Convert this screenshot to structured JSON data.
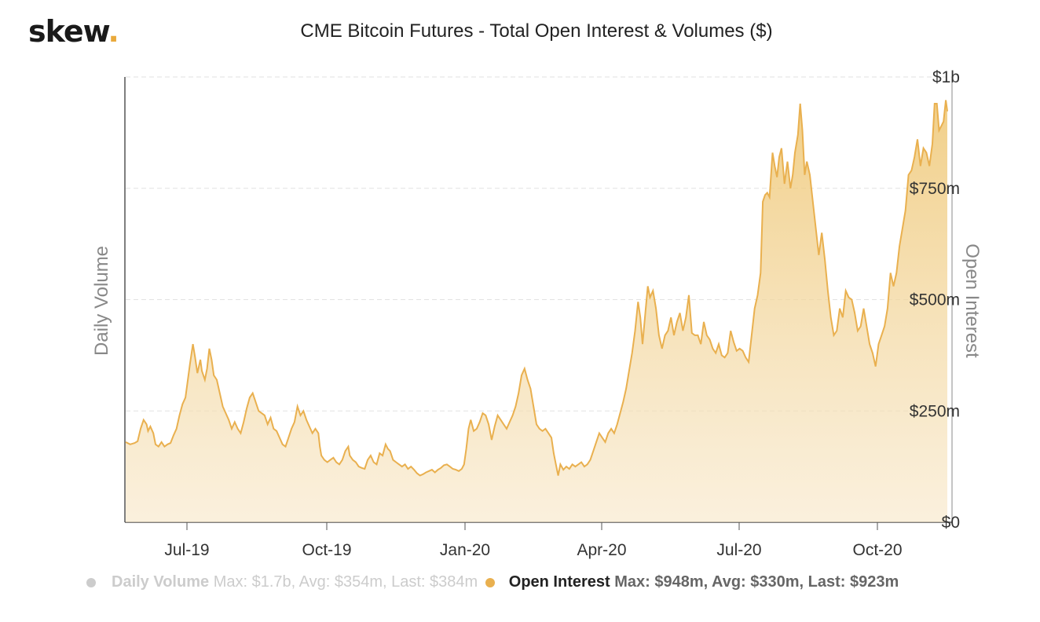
{
  "logo": {
    "text": "skew",
    "dot": "."
  },
  "chart_data": {
    "type": "area",
    "title": "CME Bitcoin Futures - Total Open Interest & Volumes ($)",
    "ylabel_left": "Daily Volume",
    "ylabel_right": "Open Interest",
    "x_ticks": [
      "Jul-19",
      "Oct-19",
      "Jan-20",
      "Apr-20",
      "Jul-20",
      "Oct-20"
    ],
    "y_ticks": [
      "$0",
      "$250m",
      "$500m",
      "$750m",
      "$1b"
    ],
    "ylim": [
      0,
      1000
    ],
    "y_unit": "$m",
    "grid": true,
    "color": "#e9b04f",
    "series": [
      {
        "name": "Open Interest",
        "values": [
          [
            0.0,
            180
          ],
          [
            0.3,
            175
          ],
          [
            0.6,
            178
          ],
          [
            0.8,
            182
          ],
          [
            1.0,
            210
          ],
          [
            1.2,
            230
          ],
          [
            1.4,
            220
          ],
          [
            1.5,
            205
          ],
          [
            1.65,
            215
          ],
          [
            1.85,
            200
          ],
          [
            2.0,
            175
          ],
          [
            2.2,
            170
          ],
          [
            2.4,
            180
          ],
          [
            2.6,
            170
          ],
          [
            2.8,
            175
          ],
          [
            3.0,
            178
          ],
          [
            3.2,
            195
          ],
          [
            3.4,
            210
          ],
          [
            3.6,
            240
          ],
          [
            3.8,
            265
          ],
          [
            4.0,
            280
          ],
          [
            4.1,
            305
          ],
          [
            4.3,
            355
          ],
          [
            4.5,
            400
          ],
          [
            4.65,
            370
          ],
          [
            4.8,
            335
          ],
          [
            5.0,
            365
          ],
          [
            5.1,
            340
          ],
          [
            5.3,
            320
          ],
          [
            5.45,
            345
          ],
          [
            5.6,
            390
          ],
          [
            5.75,
            365
          ],
          [
            5.9,
            330
          ],
          [
            6.1,
            320
          ],
          [
            6.3,
            290
          ],
          [
            6.5,
            260
          ],
          [
            6.7,
            245
          ],
          [
            6.9,
            230
          ],
          [
            7.1,
            210
          ],
          [
            7.3,
            225
          ],
          [
            7.5,
            210
          ],
          [
            7.7,
            200
          ],
          [
            7.9,
            225
          ],
          [
            8.1,
            255
          ],
          [
            8.3,
            280
          ],
          [
            8.5,
            290
          ],
          [
            8.7,
            270
          ],
          [
            8.9,
            250
          ],
          [
            9.1,
            245
          ],
          [
            9.3,
            240
          ],
          [
            9.5,
            220
          ],
          [
            9.7,
            235
          ],
          [
            9.9,
            210
          ],
          [
            10.1,
            205
          ],
          [
            10.3,
            190
          ],
          [
            10.5,
            175
          ],
          [
            10.7,
            170
          ],
          [
            10.9,
            190
          ],
          [
            11.1,
            210
          ],
          [
            11.3,
            225
          ],
          [
            11.5,
            260
          ],
          [
            11.7,
            240
          ],
          [
            11.9,
            250
          ],
          [
            12.1,
            230
          ],
          [
            12.3,
            215
          ],
          [
            12.5,
            200
          ],
          [
            12.7,
            210
          ],
          [
            12.9,
            200
          ],
          [
            13.0,
            170
          ],
          [
            13.1,
            150
          ],
          [
            13.3,
            140
          ],
          [
            13.5,
            135
          ],
          [
            13.7,
            140
          ],
          [
            13.9,
            145
          ],
          [
            14.1,
            135
          ],
          [
            14.3,
            130
          ],
          [
            14.5,
            140
          ],
          [
            14.7,
            160
          ],
          [
            14.9,
            170
          ],
          [
            15.0,
            150
          ],
          [
            15.2,
            140
          ],
          [
            15.4,
            135
          ],
          [
            15.6,
            125
          ],
          [
            15.8,
            122
          ],
          [
            16.0,
            120
          ],
          [
            16.2,
            140
          ],
          [
            16.4,
            150
          ],
          [
            16.6,
            135
          ],
          [
            16.8,
            130
          ],
          [
            17.0,
            155
          ],
          [
            17.2,
            150
          ],
          [
            17.4,
            175
          ],
          [
            17.55,
            165
          ],
          [
            17.7,
            160
          ],
          [
            17.9,
            140
          ],
          [
            18.1,
            135
          ],
          [
            18.3,
            130
          ],
          [
            18.5,
            125
          ],
          [
            18.7,
            130
          ],
          [
            18.9,
            120
          ],
          [
            19.1,
            125
          ],
          [
            19.3,
            118
          ],
          [
            19.5,
            110
          ],
          [
            19.7,
            105
          ],
          [
            19.9,
            108
          ],
          [
            20.1,
            112
          ],
          [
            20.3,
            115
          ],
          [
            20.5,
            118
          ],
          [
            20.7,
            112
          ],
          [
            20.9,
            118
          ],
          [
            21.1,
            122
          ],
          [
            21.3,
            128
          ],
          [
            21.5,
            130
          ],
          [
            21.7,
            125
          ],
          [
            21.9,
            120
          ],
          [
            22.1,
            118
          ],
          [
            22.3,
            115
          ],
          [
            22.5,
            120
          ],
          [
            22.65,
            130
          ],
          [
            22.8,
            165
          ],
          [
            22.95,
            210
          ],
          [
            23.1,
            230
          ],
          [
            23.3,
            205
          ],
          [
            23.5,
            210
          ],
          [
            23.7,
            225
          ],
          [
            23.9,
            245
          ],
          [
            24.1,
            240
          ],
          [
            24.3,
            220
          ],
          [
            24.5,
            185
          ],
          [
            24.7,
            215
          ],
          [
            24.9,
            240
          ],
          [
            25.1,
            230
          ],
          [
            25.3,
            220
          ],
          [
            25.5,
            210
          ],
          [
            25.7,
            225
          ],
          [
            25.9,
            240
          ],
          [
            26.1,
            260
          ],
          [
            26.3,
            290
          ],
          [
            26.5,
            330
          ],
          [
            26.7,
            345
          ],
          [
            26.9,
            320
          ],
          [
            27.1,
            300
          ],
          [
            27.3,
            260
          ],
          [
            27.5,
            220
          ],
          [
            27.7,
            210
          ],
          [
            27.9,
            205
          ],
          [
            28.1,
            210
          ],
          [
            28.3,
            200
          ],
          [
            28.5,
            190
          ],
          [
            28.65,
            155
          ],
          [
            28.8,
            130
          ],
          [
            28.95,
            105
          ],
          [
            29.1,
            130
          ],
          [
            29.3,
            118
          ],
          [
            29.5,
            125
          ],
          [
            29.7,
            120
          ],
          [
            29.9,
            130
          ],
          [
            30.1,
            125
          ],
          [
            30.3,
            130
          ],
          [
            30.5,
            135
          ],
          [
            30.7,
            125
          ],
          [
            30.9,
            130
          ],
          [
            31.1,
            140
          ],
          [
            31.3,
            160
          ],
          [
            31.5,
            180
          ],
          [
            31.7,
            200
          ],
          [
            31.9,
            190
          ],
          [
            32.1,
            180
          ],
          [
            32.3,
            200
          ],
          [
            32.5,
            210
          ],
          [
            32.7,
            200
          ],
          [
            32.9,
            220
          ],
          [
            33.1,
            245
          ],
          [
            33.3,
            270
          ],
          [
            33.5,
            300
          ],
          [
            33.7,
            340
          ],
          [
            33.9,
            380
          ],
          [
            34.1,
            430
          ],
          [
            34.3,
            495
          ],
          [
            34.45,
            460
          ],
          [
            34.6,
            400
          ],
          [
            34.8,
            475
          ],
          [
            34.95,
            530
          ],
          [
            35.1,
            505
          ],
          [
            35.3,
            520
          ],
          [
            35.5,
            480
          ],
          [
            35.7,
            420
          ],
          [
            35.9,
            390
          ],
          [
            36.1,
            420
          ],
          [
            36.3,
            430
          ],
          [
            36.5,
            460
          ],
          [
            36.7,
            420
          ],
          [
            36.9,
            450
          ],
          [
            37.1,
            470
          ],
          [
            37.3,
            430
          ],
          [
            37.5,
            460
          ],
          [
            37.7,
            510
          ],
          [
            37.9,
            425
          ],
          [
            38.1,
            420
          ],
          [
            38.3,
            420
          ],
          [
            38.5,
            400
          ],
          [
            38.7,
            450
          ],
          [
            38.9,
            420
          ],
          [
            39.1,
            410
          ],
          [
            39.3,
            390
          ],
          [
            39.5,
            380
          ],
          [
            39.7,
            400
          ],
          [
            39.9,
            375
          ],
          [
            40.1,
            370
          ],
          [
            40.3,
            380
          ],
          [
            40.5,
            430
          ],
          [
            40.7,
            405
          ],
          [
            40.9,
            385
          ],
          [
            41.1,
            390
          ],
          [
            41.3,
            385
          ],
          [
            41.5,
            370
          ],
          [
            41.7,
            360
          ],
          [
            41.9,
            420
          ],
          [
            42.1,
            480
          ],
          [
            42.3,
            510
          ],
          [
            42.5,
            560
          ],
          [
            42.65,
            720
          ],
          [
            42.8,
            735
          ],
          [
            42.95,
            740
          ],
          [
            43.1,
            730
          ],
          [
            43.3,
            830
          ],
          [
            43.45,
            800
          ],
          [
            43.6,
            775
          ],
          [
            43.75,
            820
          ],
          [
            43.9,
            840
          ],
          [
            44.1,
            760
          ],
          [
            44.3,
            810
          ],
          [
            44.5,
            750
          ],
          [
            44.65,
            780
          ],
          [
            44.8,
            830
          ],
          [
            45.0,
            870
          ],
          [
            45.15,
            940
          ],
          [
            45.3,
            880
          ],
          [
            45.45,
            780
          ],
          [
            45.6,
            810
          ],
          [
            45.8,
            780
          ],
          [
            46.0,
            720
          ],
          [
            46.2,
            660
          ],
          [
            46.4,
            600
          ],
          [
            46.6,
            650
          ],
          [
            46.8,
            590
          ],
          [
            47.0,
            520
          ],
          [
            47.2,
            460
          ],
          [
            47.4,
            420
          ],
          [
            47.6,
            430
          ],
          [
            47.8,
            480
          ],
          [
            48.0,
            460
          ],
          [
            48.2,
            520
          ],
          [
            48.4,
            505
          ],
          [
            48.6,
            500
          ],
          [
            48.8,
            470
          ],
          [
            49.0,
            430
          ],
          [
            49.2,
            440
          ],
          [
            49.4,
            480
          ],
          [
            49.6,
            440
          ],
          [
            49.8,
            400
          ],
          [
            50.0,
            380
          ],
          [
            50.2,
            350
          ],
          [
            50.4,
            400
          ],
          [
            50.6,
            420
          ],
          [
            50.8,
            440
          ],
          [
            51.0,
            480
          ],
          [
            51.2,
            560
          ],
          [
            51.4,
            530
          ],
          [
            51.6,
            560
          ],
          [
            51.8,
            620
          ],
          [
            52.0,
            660
          ],
          [
            52.2,
            700
          ],
          [
            52.4,
            780
          ],
          [
            52.6,
            790
          ],
          [
            52.8,
            820
          ],
          [
            53.0,
            860
          ],
          [
            53.2,
            800
          ],
          [
            53.4,
            840
          ],
          [
            53.6,
            830
          ],
          [
            53.8,
            800
          ],
          [
            54.0,
            850
          ],
          [
            54.15,
            940
          ],
          [
            54.3,
            940
          ],
          [
            54.45,
            880
          ],
          [
            54.6,
            890
          ],
          [
            54.75,
            900
          ],
          [
            54.9,
            948
          ],
          [
            55.0,
            923
          ]
        ]
      }
    ],
    "legend": [
      {
        "name": "Daily Volume",
        "stats": "Max: $1.7b, Avg: $354m, Last: $384m",
        "active": false
      },
      {
        "name": "Open Interest",
        "stats": "Max: $948m, Avg: $330m, Last: $923m",
        "active": true
      }
    ]
  }
}
